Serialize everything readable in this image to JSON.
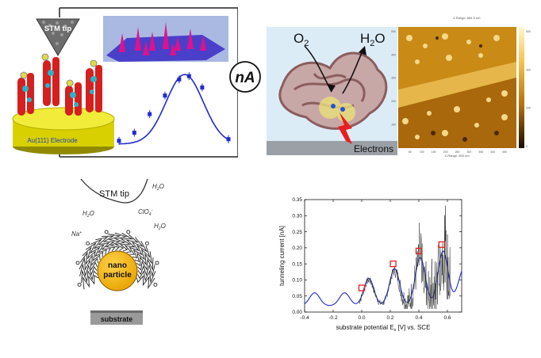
{
  "center_label": "nA",
  "panel_a": {
    "stm_tip": "STM tip",
    "electrode": "Au(111) Electrode",
    "points": [
      [
        0.0,
        0.12
      ],
      [
        0.14,
        0.22
      ],
      [
        0.28,
        0.45
      ],
      [
        0.42,
        0.68
      ],
      [
        0.55,
        0.88
      ],
      [
        0.64,
        0.92
      ],
      [
        0.76,
        0.78
      ],
      [
        1.0,
        0.14
      ]
    ]
  },
  "panel_b": {
    "o2_main": "O",
    "o2_sub": "2",
    "h2o_h": "H",
    "h2o_sub": "2",
    "h2o_o": "O",
    "electrons": "Electrons",
    "afm_header": "Z-Range: 884.5 nm",
    "afm_xrange": "X-Range: 500 nm",
    "afm_ticks_y": [
      "100",
      "200",
      "300",
      "400",
      "500"
    ],
    "afm_ticks_x": [
      "50",
      "100",
      "150",
      "200",
      "250",
      "300",
      "350",
      "400",
      "450"
    ],
    "scale_ticks": [
      "600",
      "400",
      "200",
      "0"
    ]
  },
  "panel_c": {
    "stm_tip": "STM tip",
    "h2o_1": "H",
    "h2o_1_sub": "2",
    "h2o_1_o": "O",
    "h2o_2": "H",
    "h2o_2_sub": "2",
    "h2o_2_o": "O",
    "h2o_3": "H",
    "h2o_3_sub": "2",
    "h2o_3_o": "O",
    "clo4": "ClO",
    "clo4_sub": "4",
    "clo4_sup": "-",
    "na": "Na",
    "na_sup": "+",
    "nano1": "nano",
    "nano2": "particle",
    "substrate": "substrate"
  },
  "chart_data": {
    "type": "line",
    "xlabel_pre": "substrate potential E",
    "xlabel_sub": "s",
    "xlabel_post": " [V] vs. SCE",
    "ylabel": "tunneling current [nA]",
    "xlim": [
      -0.4,
      0.7
    ],
    "ylim": [
      0.0,
      0.35
    ],
    "xticks": [
      -0.4,
      -0.2,
      0.0,
      0.2,
      0.4,
      0.6
    ],
    "xtick_labels": [
      "-0.4",
      "-0.2",
      "0.0",
      "0.2",
      "0.4",
      "0.6"
    ],
    "yticks": [
      0.0,
      0.05,
      0.1,
      0.15,
      0.2,
      0.25,
      0.3,
      0.35
    ],
    "ytick_labels": [
      "0.00",
      "0.05",
      "0.10",
      "0.15",
      "0.20",
      "0.25",
      "0.30",
      "0.35"
    ],
    "squares": [
      [
        0.0,
        0.075
      ],
      [
        0.22,
        0.15
      ],
      [
        0.4,
        0.19
      ],
      [
        0.56,
        0.21
      ]
    ],
    "theory_color": "#1f2bd0",
    "square_color": "#e32020"
  }
}
